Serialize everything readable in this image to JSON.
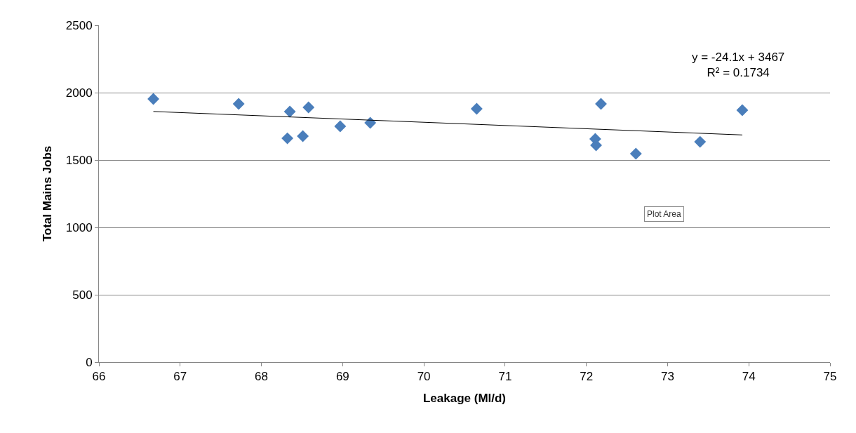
{
  "chart_data": {
    "type": "scatter",
    "xlabel": "Leakage (Ml/d)",
    "ylabel": "Total Mains Jobs",
    "x": [
      66.67,
      67.72,
      68.35,
      68.32,
      68.51,
      68.58,
      68.97,
      69.34,
      70.65,
      72.11,
      72.12,
      72.18,
      72.61,
      73.4,
      73.92
    ],
    "series": [
      {
        "color": "#4a7ebb",
        "values": [
          1953,
          1917,
          1859,
          1661,
          1677,
          1891,
          1750,
          1776,
          1880,
          1656,
          1609,
          1917,
          1547,
          1635,
          1870
        ]
      },
      {
        "type": "line",
        "marker": "none",
        "color": "#000000",
        "x": [
          66.67,
          73.92
        ],
        "values": [
          1860,
          1686
        ]
      }
    ],
    "xlim": [
      66,
      75
    ],
    "xticks": [
      66,
      67,
      68,
      69,
      70,
      71,
      72,
      73,
      74,
      75
    ],
    "ylim": [
      0,
      2500
    ],
    "yticks": [
      0,
      500,
      1000,
      1500,
      2000,
      2500
    ],
    "grid": "y",
    "marker": "diamond",
    "annotations": [
      "y = -24.1x + 3467\nR² = 0.1734",
      "Plot Area"
    ]
  }
}
